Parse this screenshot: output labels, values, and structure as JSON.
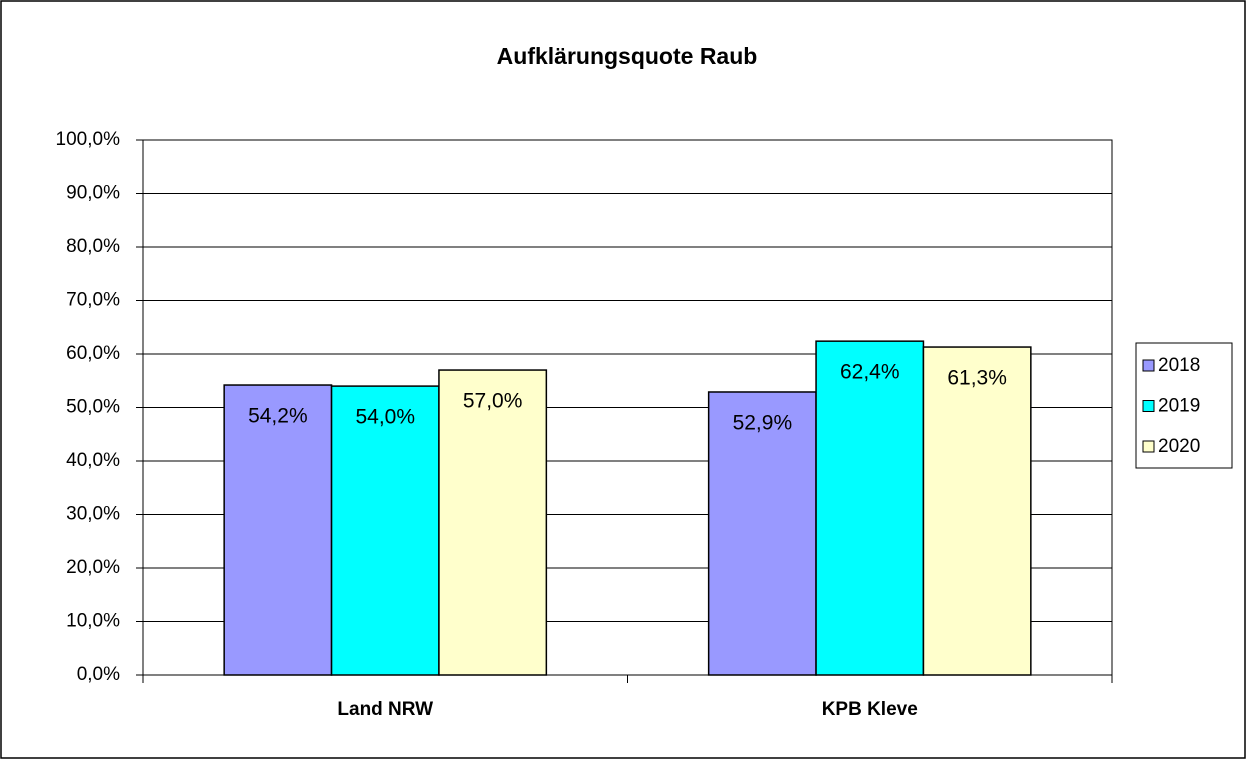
{
  "chart_data": {
    "type": "bar",
    "title": "Aufklärungsquote Raub",
    "categories": [
      "Land NRW",
      "KPB Kleve"
    ],
    "series": [
      {
        "name": "2018",
        "color": "#9999ff",
        "values": [
          54.2,
          52.9
        ],
        "value_labels": [
          "54,2%",
          "52,9%"
        ]
      },
      {
        "name": "2019",
        "color": "#00ffff",
        "values": [
          54.0,
          62.4
        ],
        "value_labels": [
          "54,0%",
          "62,4%"
        ]
      },
      {
        "name": "2020",
        "color": "#ffffcc",
        "values": [
          57.0,
          61.3
        ],
        "value_labels": [
          "57,0%",
          "61,3%"
        ]
      }
    ],
    "ylim": [
      0,
      100
    ],
    "yticks": [
      {
        "value": 0,
        "label": "0,0%"
      },
      {
        "value": 10,
        "label": "10,0%"
      },
      {
        "value": 20,
        "label": "20,0%"
      },
      {
        "value": 30,
        "label": "30,0%"
      },
      {
        "value": 40,
        "label": "40,0%"
      },
      {
        "value": 50,
        "label": "50,0%"
      },
      {
        "value": 60,
        "label": "60,0%"
      },
      {
        "value": 70,
        "label": "70,0%"
      },
      {
        "value": 80,
        "label": "80,0%"
      },
      {
        "value": 90,
        "label": "90,0%"
      },
      {
        "value": 100,
        "label": "100,0%"
      }
    ],
    "grid": true,
    "legend": "right"
  }
}
